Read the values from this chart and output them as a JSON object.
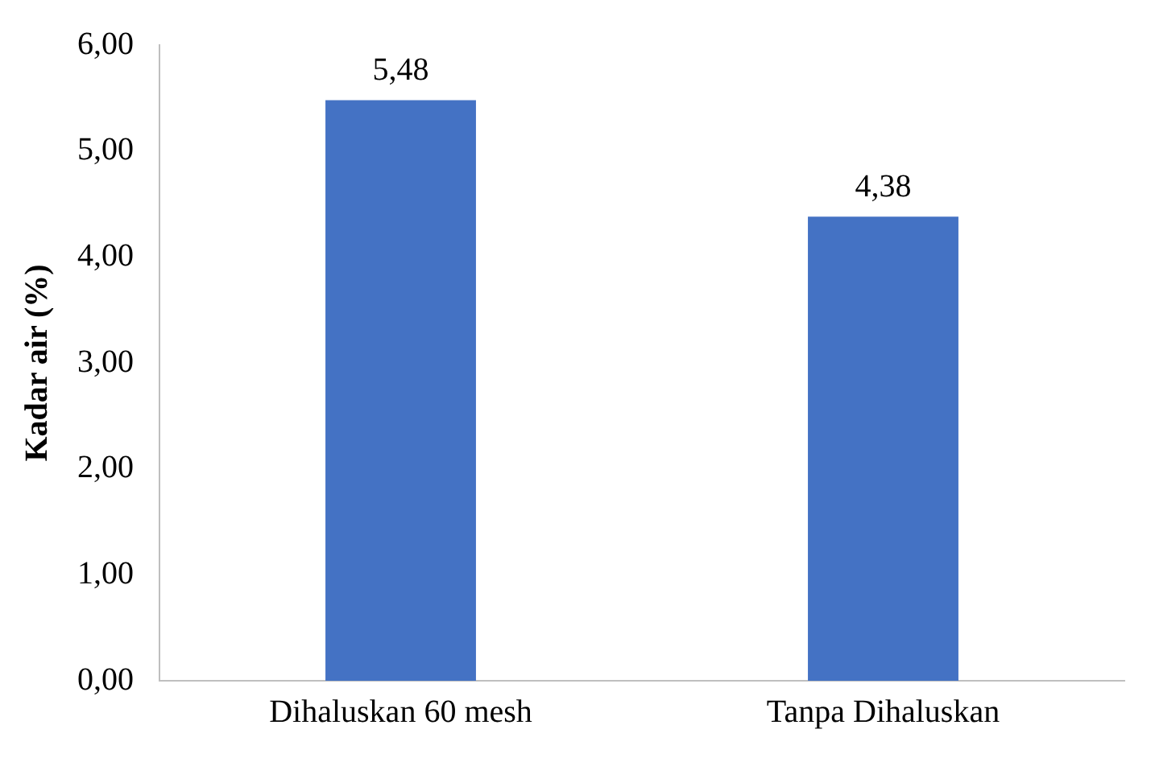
{
  "chart_data": {
    "type": "bar",
    "ylabel": "Kadar air (%)",
    "categories": [
      "Dihaluskan 60 mesh",
      "Tanpa Dihaluskan"
    ],
    "values": [
      5.48,
      4.38
    ],
    "color": "#4472c4",
    "value_labels": [
      "5,48",
      "4,38"
    ],
    "ylim": [
      0,
      6
    ],
    "yticks": [
      {
        "value": 0,
        "label": "0,00"
      },
      {
        "value": 1,
        "label": "1,00"
      },
      {
        "value": 2,
        "label": "2,00"
      },
      {
        "value": 3,
        "label": "3,00"
      },
      {
        "value": 4,
        "label": "4,00"
      },
      {
        "value": 5,
        "label": "5,00"
      },
      {
        "value": 6,
        "label": "6,00"
      }
    ],
    "grid": false,
    "legend": false
  }
}
